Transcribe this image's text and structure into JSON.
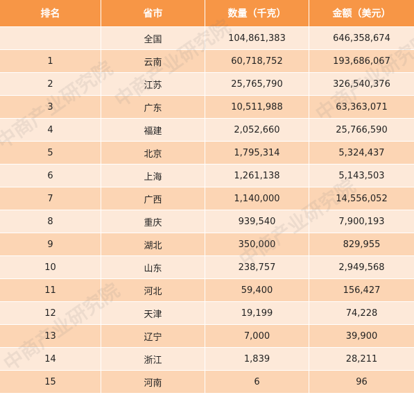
{
  "header": [
    "排名",
    "省市",
    "数量（千克）",
    "金额（美元）"
  ],
  "rows": [
    {
      "rank": "",
      "province": "全国",
      "quantity": "104,861,383",
      "amount": "646,358,674"
    },
    {
      "rank": "1",
      "province": "云南",
      "quantity": "60,718,752",
      "amount": "193,686,067"
    },
    {
      "rank": "2",
      "province": "江苏",
      "quantity": "25,765,790",
      "amount": "326,540,376"
    },
    {
      "rank": "3",
      "province": "广东",
      "quantity": "10,511,988",
      "amount": "63,363,071"
    },
    {
      "rank": "4",
      "province": "福建",
      "quantity": "2,052,660",
      "amount": "25,766,590"
    },
    {
      "rank": "5",
      "province": "北京",
      "quantity": "1,795,314",
      "amount": "5,324,437"
    },
    {
      "rank": "6",
      "province": "上海",
      "quantity": "1,261,138",
      "amount": "5,143,503"
    },
    {
      "rank": "7",
      "province": "广西",
      "quantity": "1,140,000",
      "amount": "14,556,052"
    },
    {
      "rank": "8",
      "province": "重庆",
      "quantity": "939,540",
      "amount": "7,900,193"
    },
    {
      "rank": "9",
      "province": "湖北",
      "quantity": "350,000",
      "amount": "829,955"
    },
    {
      "rank": "10",
      "province": "山东",
      "quantity": "238,757",
      "amount": "2,949,568"
    },
    {
      "rank": "11",
      "province": "河北",
      "quantity": "59,400",
      "amount": "156,427"
    },
    {
      "rank": "12",
      "province": "天津",
      "quantity": "19,199",
      "amount": "74,228"
    },
    {
      "rank": "13",
      "province": "辽宁",
      "quantity": "7,000",
      "amount": "39,900"
    },
    {
      "rank": "14",
      "province": "浙江",
      "quantity": "1,839",
      "amount": "28,211"
    },
    {
      "rank": "15",
      "province": "河南",
      "quantity": "6",
      "amount": "96"
    }
  ],
  "watermark_text": "中商产业研究院",
  "colors": {
    "header": "#f79646",
    "odd_row": "#fde9d9",
    "even_row": "#fcd5b4"
  }
}
